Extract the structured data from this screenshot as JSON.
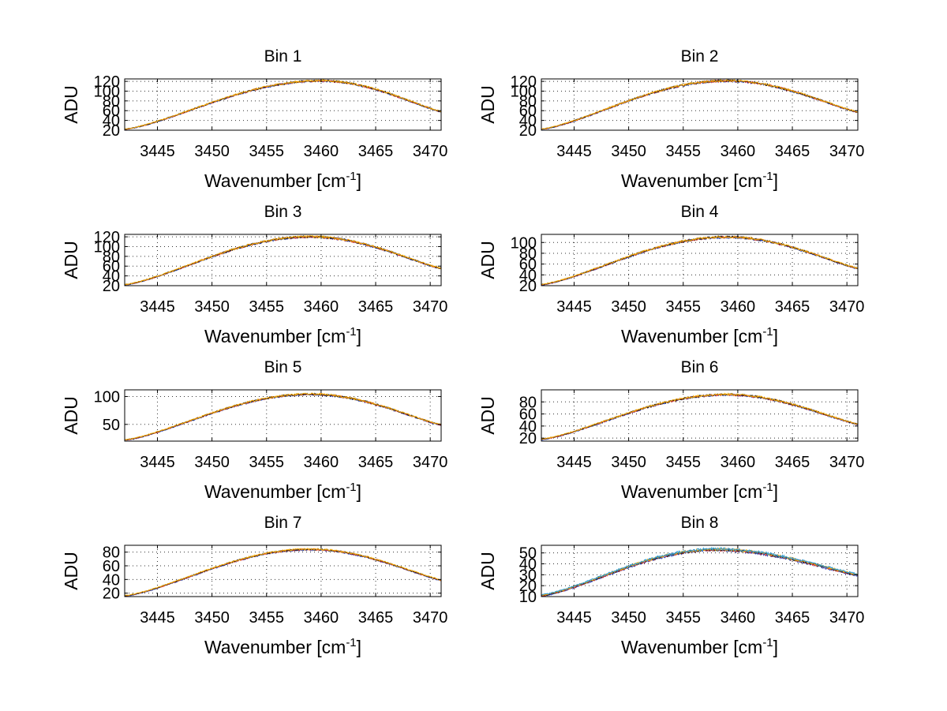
{
  "chart_data": [
    {
      "type": "line",
      "title": "Bin 1",
      "xlabel_base": "Wavenumber [cm",
      "xlabel_sup": "-1",
      "xlabel_close": "]",
      "ylabel": "ADU",
      "xlim": [
        3442,
        3471
      ],
      "ylim": [
        20,
        125
      ],
      "xticks": [
        3445,
        3450,
        3455,
        3460,
        3465,
        3470
      ],
      "yticks": [
        20,
        40,
        60,
        80,
        100,
        120
      ],
      "ytick_labels": [
        "20",
        "40",
        "60",
        "80",
        "100",
        "120"
      ],
      "grid": true,
      "series_colors": [
        "#1f3fbf",
        "#d42a2a",
        "#222222",
        "#f5a900"
      ],
      "profile": {
        "x0": 3442,
        "x1": 3471,
        "ystart": 22,
        "ypeak": 121,
        "xpeak": 3460,
        "yend": 58
      },
      "noise": 2.0
    },
    {
      "type": "line",
      "title": "Bin 2",
      "xlabel_base": "Wavenumber [cm",
      "xlabel_sup": "-1",
      "xlabel_close": "]",
      "ylabel": "ADU",
      "xlim": [
        3442,
        3471
      ],
      "ylim": [
        20,
        125
      ],
      "xticks": [
        3445,
        3450,
        3455,
        3460,
        3465,
        3470
      ],
      "yticks": [
        20,
        40,
        60,
        80,
        100,
        120
      ],
      "ytick_labels": [
        "20",
        "40",
        "60",
        "80",
        "100",
        "120"
      ],
      "grid": true,
      "series_colors": [
        "#1f3fbf",
        "#d42a2a",
        "#222222",
        "#f5a900"
      ],
      "profile": {
        "x0": 3442,
        "x1": 3471,
        "ystart": 22,
        "ypeak": 121,
        "xpeak": 3459,
        "yend": 57
      },
      "noise": 2.2
    },
    {
      "type": "line",
      "title": "Bin 3",
      "xlabel_base": "Wavenumber [cm",
      "xlabel_sup": "-1",
      "xlabel_close": "]",
      "ylabel": "ADU",
      "xlim": [
        3442,
        3471
      ],
      "ylim": [
        20,
        125
      ],
      "xticks": [
        3445,
        3450,
        3455,
        3460,
        3465,
        3470
      ],
      "yticks": [
        20,
        40,
        60,
        80,
        100,
        120
      ],
      "ytick_labels": [
        "20",
        "40",
        "60",
        "80",
        "100",
        "120"
      ],
      "grid": true,
      "series_colors": [
        "#1f3fbf",
        "#d42a2a",
        "#222222",
        "#f5a900"
      ],
      "profile": {
        "x0": 3442,
        "x1": 3471,
        "ystart": 22,
        "ypeak": 120,
        "xpeak": 3459,
        "yend": 55
      },
      "noise": 2.2
    },
    {
      "type": "line",
      "title": "Bin 4",
      "xlabel_base": "Wavenumber [cm",
      "xlabel_sup": "-1",
      "xlabel_close": "]",
      "ylabel": "ADU",
      "xlim": [
        3442,
        3471
      ],
      "ylim": [
        20,
        115
      ],
      "xticks": [
        3445,
        3450,
        3455,
        3460,
        3465,
        3470
      ],
      "yticks": [
        20,
        40,
        60,
        80,
        100
      ],
      "ytick_labels": [
        "20",
        "40",
        "60",
        "80",
        "100"
      ],
      "grid": true,
      "series_colors": [
        "#1f3fbf",
        "#d42a2a",
        "#222222",
        "#f5a900"
      ],
      "profile": {
        "x0": 3442,
        "x1": 3471,
        "ystart": 22,
        "ypeak": 110,
        "xpeak": 3459,
        "yend": 52
      },
      "noise": 2.0
    },
    {
      "type": "line",
      "title": "Bin 5",
      "xlabel_base": "Wavenumber [cm",
      "xlabel_sup": "-1",
      "xlabel_close": "]",
      "ylabel": "ADU",
      "xlim": [
        3442,
        3471
      ],
      "ylim": [
        20,
        112
      ],
      "xticks": [
        3445,
        3450,
        3455,
        3460,
        3465,
        3470
      ],
      "yticks": [
        50,
        100
      ],
      "ytick_labels": [
        "50",
        "100"
      ],
      "grid": true,
      "series_colors": [
        "#1f3fbf",
        "#d42a2a",
        "#222222",
        "#f5a900"
      ],
      "profile": {
        "x0": 3442,
        "x1": 3471,
        "ystart": 22,
        "ypeak": 104,
        "xpeak": 3459,
        "yend": 49
      },
      "noise": 1.8
    },
    {
      "type": "line",
      "title": "Bin 6",
      "xlabel_base": "Wavenumber [cm",
      "xlabel_sup": "-1",
      "xlabel_close": "]",
      "ylabel": "ADU",
      "xlim": [
        3442,
        3471
      ],
      "ylim": [
        15,
        100
      ],
      "xticks": [
        3445,
        3450,
        3455,
        3460,
        3465,
        3470
      ],
      "yticks": [
        20,
        40,
        60,
        80
      ],
      "ytick_labels": [
        "20",
        "40",
        "60",
        "80"
      ],
      "grid": true,
      "series_colors": [
        "#1f3fbf",
        "#d42a2a",
        "#222222",
        "#f5a900"
      ],
      "profile": {
        "x0": 3442,
        "x1": 3471,
        "ystart": 18,
        "ypeak": 92,
        "xpeak": 3459,
        "yend": 43
      },
      "noise": 1.8
    },
    {
      "type": "line",
      "title": "Bin 7",
      "xlabel_base": "Wavenumber [cm",
      "xlabel_sup": "-1",
      "xlabel_close": "]",
      "ylabel": "ADU",
      "xlim": [
        3442,
        3471
      ],
      "ylim": [
        15,
        90
      ],
      "xticks": [
        3445,
        3450,
        3455,
        3460,
        3465,
        3470
      ],
      "yticks": [
        20,
        40,
        60,
        80
      ],
      "ytick_labels": [
        "20",
        "40",
        "60",
        "80"
      ],
      "grid": true,
      "series_colors": [
        "#1f3fbf",
        "#d42a2a",
        "#222222",
        "#f5a900"
      ],
      "profile": {
        "x0": 3442,
        "x1": 3471,
        "ystart": 16,
        "ypeak": 84,
        "xpeak": 3459,
        "yend": 39
      },
      "noise": 1.3
    },
    {
      "type": "line",
      "title": "Bin 8",
      "xlabel_base": "Wavenumber [cm",
      "xlabel_sup": "-1",
      "xlabel_close": "]",
      "ylabel": "ADU",
      "xlim": [
        3442,
        3471
      ],
      "ylim": [
        10,
        57
      ],
      "xticks": [
        3445,
        3450,
        3455,
        3460,
        3465,
        3470
      ],
      "yticks": [
        10,
        20,
        30,
        40,
        50
      ],
      "ytick_labels": [
        "10",
        "20",
        "30",
        "40",
        "50"
      ],
      "grid": true,
      "series_colors": [
        "#1f3fbf",
        "#d42a2a",
        "#222222",
        "#f5a900",
        "#2a9bd6"
      ],
      "profile": {
        "x0": 3442,
        "x1": 3471,
        "ystart": 11,
        "ypeak": 53,
        "xpeak": 3458,
        "yend": 30
      },
      "noise": 1.2
    }
  ]
}
